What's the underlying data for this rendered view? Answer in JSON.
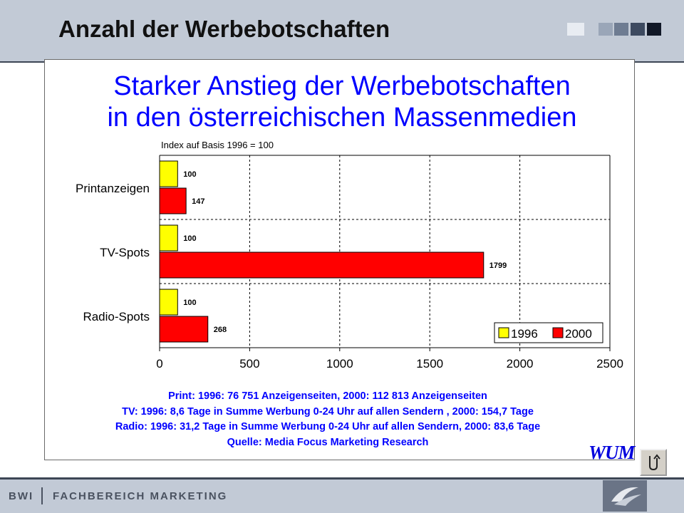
{
  "slide_title": "Anzahl der Werbebotschaften",
  "heading": [
    "Starker Anstieg der Werbebotschaften",
    "in den österreichischen Massenmedien"
  ],
  "notes": [
    "Print: 1996: 76 751 Anzeigenseiten, 2000: 112 813 Anzeigenseiten",
    "TV: 1996: 8,6 Tage in Summe Werbung  0-24 Uhr auf allen Sendern , 2000: 154,7 Tage",
    "Radio: 1996: 31,2 Tage in Summe Werbung 0-24 Uhr auf allen Sendern, 2000: 83,6 Tage",
    "Quelle: Media Focus Marketing Research"
  ],
  "logo_text": "WUM",
  "footer": {
    "org": "BWI",
    "dept": "FACHBEREICH MARKETING"
  },
  "icons": {
    "back": "back-arrow-icon",
    "footer_logo": "swoosh-logo-icon"
  },
  "colors": {
    "accent_text": "#0000ff",
    "series_1996": "#ffff00",
    "series_2000": "#ff0000",
    "header_bg": "#c2cad6"
  },
  "chart_data": {
    "type": "bar",
    "orientation": "horizontal",
    "subtitle": "Index auf Basis 1996 = 100",
    "categories": [
      "Printanzeigen",
      "TV-Spots",
      "Radio-Spots"
    ],
    "series": [
      {
        "name": "1996",
        "values": [
          100,
          100,
          100
        ],
        "color": "#ffff00"
      },
      {
        "name": "2000",
        "values": [
          147,
          1799,
          268
        ],
        "color": "#ff0000"
      }
    ],
    "xlim": [
      0,
      2500
    ],
    "xticks": [
      0,
      500,
      1000,
      1500,
      2000,
      2500
    ],
    "grid": "dashed vertical and horizontal",
    "legend": "bottom-right",
    "data_labels": true
  }
}
